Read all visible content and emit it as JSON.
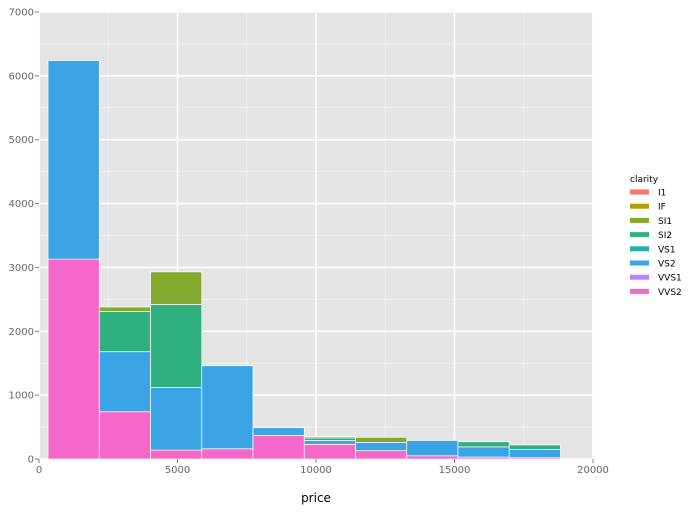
{
  "chart_data": {
    "type": "bar",
    "subtype": "stacked histogram",
    "xlabel": "price",
    "ylabel": "",
    "xlim": [
      0,
      20000
    ],
    "ylim": [
      0,
      7000
    ],
    "x_ticks": [
      0,
      5000,
      10000,
      15000,
      20000
    ],
    "y_ticks": [
      0,
      1000,
      2000,
      3000,
      4000,
      5000,
      6000,
      7000
    ],
    "grid": true,
    "legend": {
      "title": "clarity",
      "position": "right",
      "entries": [
        {
          "name": "I1",
          "color": "#f8766d"
        },
        {
          "name": "IF",
          "color": "#b79f00"
        },
        {
          "name": "SI1",
          "color": "#84a92f"
        },
        {
          "name": "SI2",
          "color": "#2fb07e"
        },
        {
          "name": "VS1",
          "color": "#24aeaa"
        },
        {
          "name": "VS2",
          "color": "#3ba4e4"
        },
        {
          "name": "VVS1",
          "color": "#bb84f6"
        },
        {
          "name": "VVS2",
          "color": "#f567c9"
        }
      ]
    },
    "bins": [
      {
        "start": 326,
        "end": 2176,
        "segments": [
          {
            "clarity": "VVS2",
            "value": 3130
          },
          {
            "clarity": "VS2",
            "value": 3110
          }
        ]
      },
      {
        "start": 2176,
        "end": 4026,
        "segments": [
          {
            "clarity": "VVS2",
            "value": 740
          },
          {
            "clarity": "VS2",
            "value": 940
          },
          {
            "clarity": "SI2",
            "value": 630
          },
          {
            "clarity": "SI1",
            "value": 70
          }
        ]
      },
      {
        "start": 4026,
        "end": 5876,
        "segments": [
          {
            "clarity": "VVS2",
            "value": 140
          },
          {
            "clarity": "VS2",
            "value": 980
          },
          {
            "clarity": "SI2",
            "value": 1300
          },
          {
            "clarity": "SI1",
            "value": 510
          }
        ]
      },
      {
        "start": 5876,
        "end": 7726,
        "segments": [
          {
            "clarity": "VVS2",
            "value": 160
          },
          {
            "clarity": "VS2",
            "value": 1300
          }
        ]
      },
      {
        "start": 7726,
        "end": 9576,
        "segments": [
          {
            "clarity": "VVS2",
            "value": 370
          },
          {
            "clarity": "VS2",
            "value": 120
          }
        ]
      },
      {
        "start": 9576,
        "end": 11426,
        "segments": [
          {
            "clarity": "VVS2",
            "value": 230
          },
          {
            "clarity": "VS2",
            "value": 60
          },
          {
            "clarity": "SI2",
            "value": 40
          },
          {
            "clarity": "SI1",
            "value": 20
          }
        ]
      },
      {
        "start": 11426,
        "end": 13276,
        "segments": [
          {
            "clarity": "VVS2",
            "value": 130
          },
          {
            "clarity": "VS2",
            "value": 130
          },
          {
            "clarity": "SI1",
            "value": 80
          }
        ]
      },
      {
        "start": 13276,
        "end": 15126,
        "segments": [
          {
            "clarity": "VVS2",
            "value": 50
          },
          {
            "clarity": "VS2",
            "value": 240
          }
        ]
      },
      {
        "start": 15126,
        "end": 16976,
        "segments": [
          {
            "clarity": "VVS2",
            "value": 30
          },
          {
            "clarity": "VS2",
            "value": 160
          },
          {
            "clarity": "SI2",
            "value": 80
          }
        ]
      },
      {
        "start": 16976,
        "end": 18826,
        "segments": [
          {
            "clarity": "VVS2",
            "value": 20
          },
          {
            "clarity": "VS2",
            "value": 130
          },
          {
            "clarity": "SI2",
            "value": 70
          }
        ]
      }
    ]
  }
}
